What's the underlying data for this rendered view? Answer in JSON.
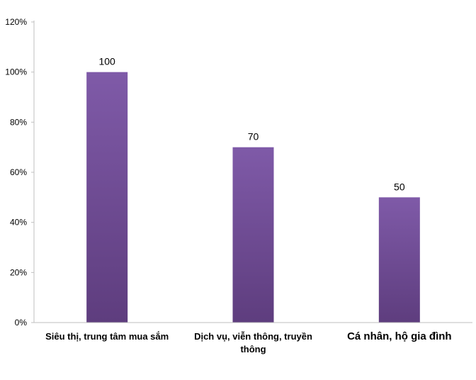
{
  "chart_data": {
    "type": "bar",
    "categories": [
      "Siêu thị, trung tâm mua sắm",
      "Dịch vụ, viễn thông, truyền thông",
      "Cá nhân, hộ gia đình"
    ],
    "values": [
      100,
      70,
      50
    ],
    "value_labels": [
      "100",
      "70",
      "50"
    ],
    "y_ticks": [
      "0%",
      "20%",
      "40%",
      "60%",
      "80%",
      "100%",
      "120%"
    ],
    "ylim": [
      0,
      120
    ],
    "grid": false,
    "legend": "none",
    "title": "",
    "xlabel": "",
    "ylabel": "",
    "colors": {
      "bar_top": "#7f5aa8",
      "bar_bottom": "#5e3d7e",
      "axis": "#bfbfbf"
    }
  }
}
